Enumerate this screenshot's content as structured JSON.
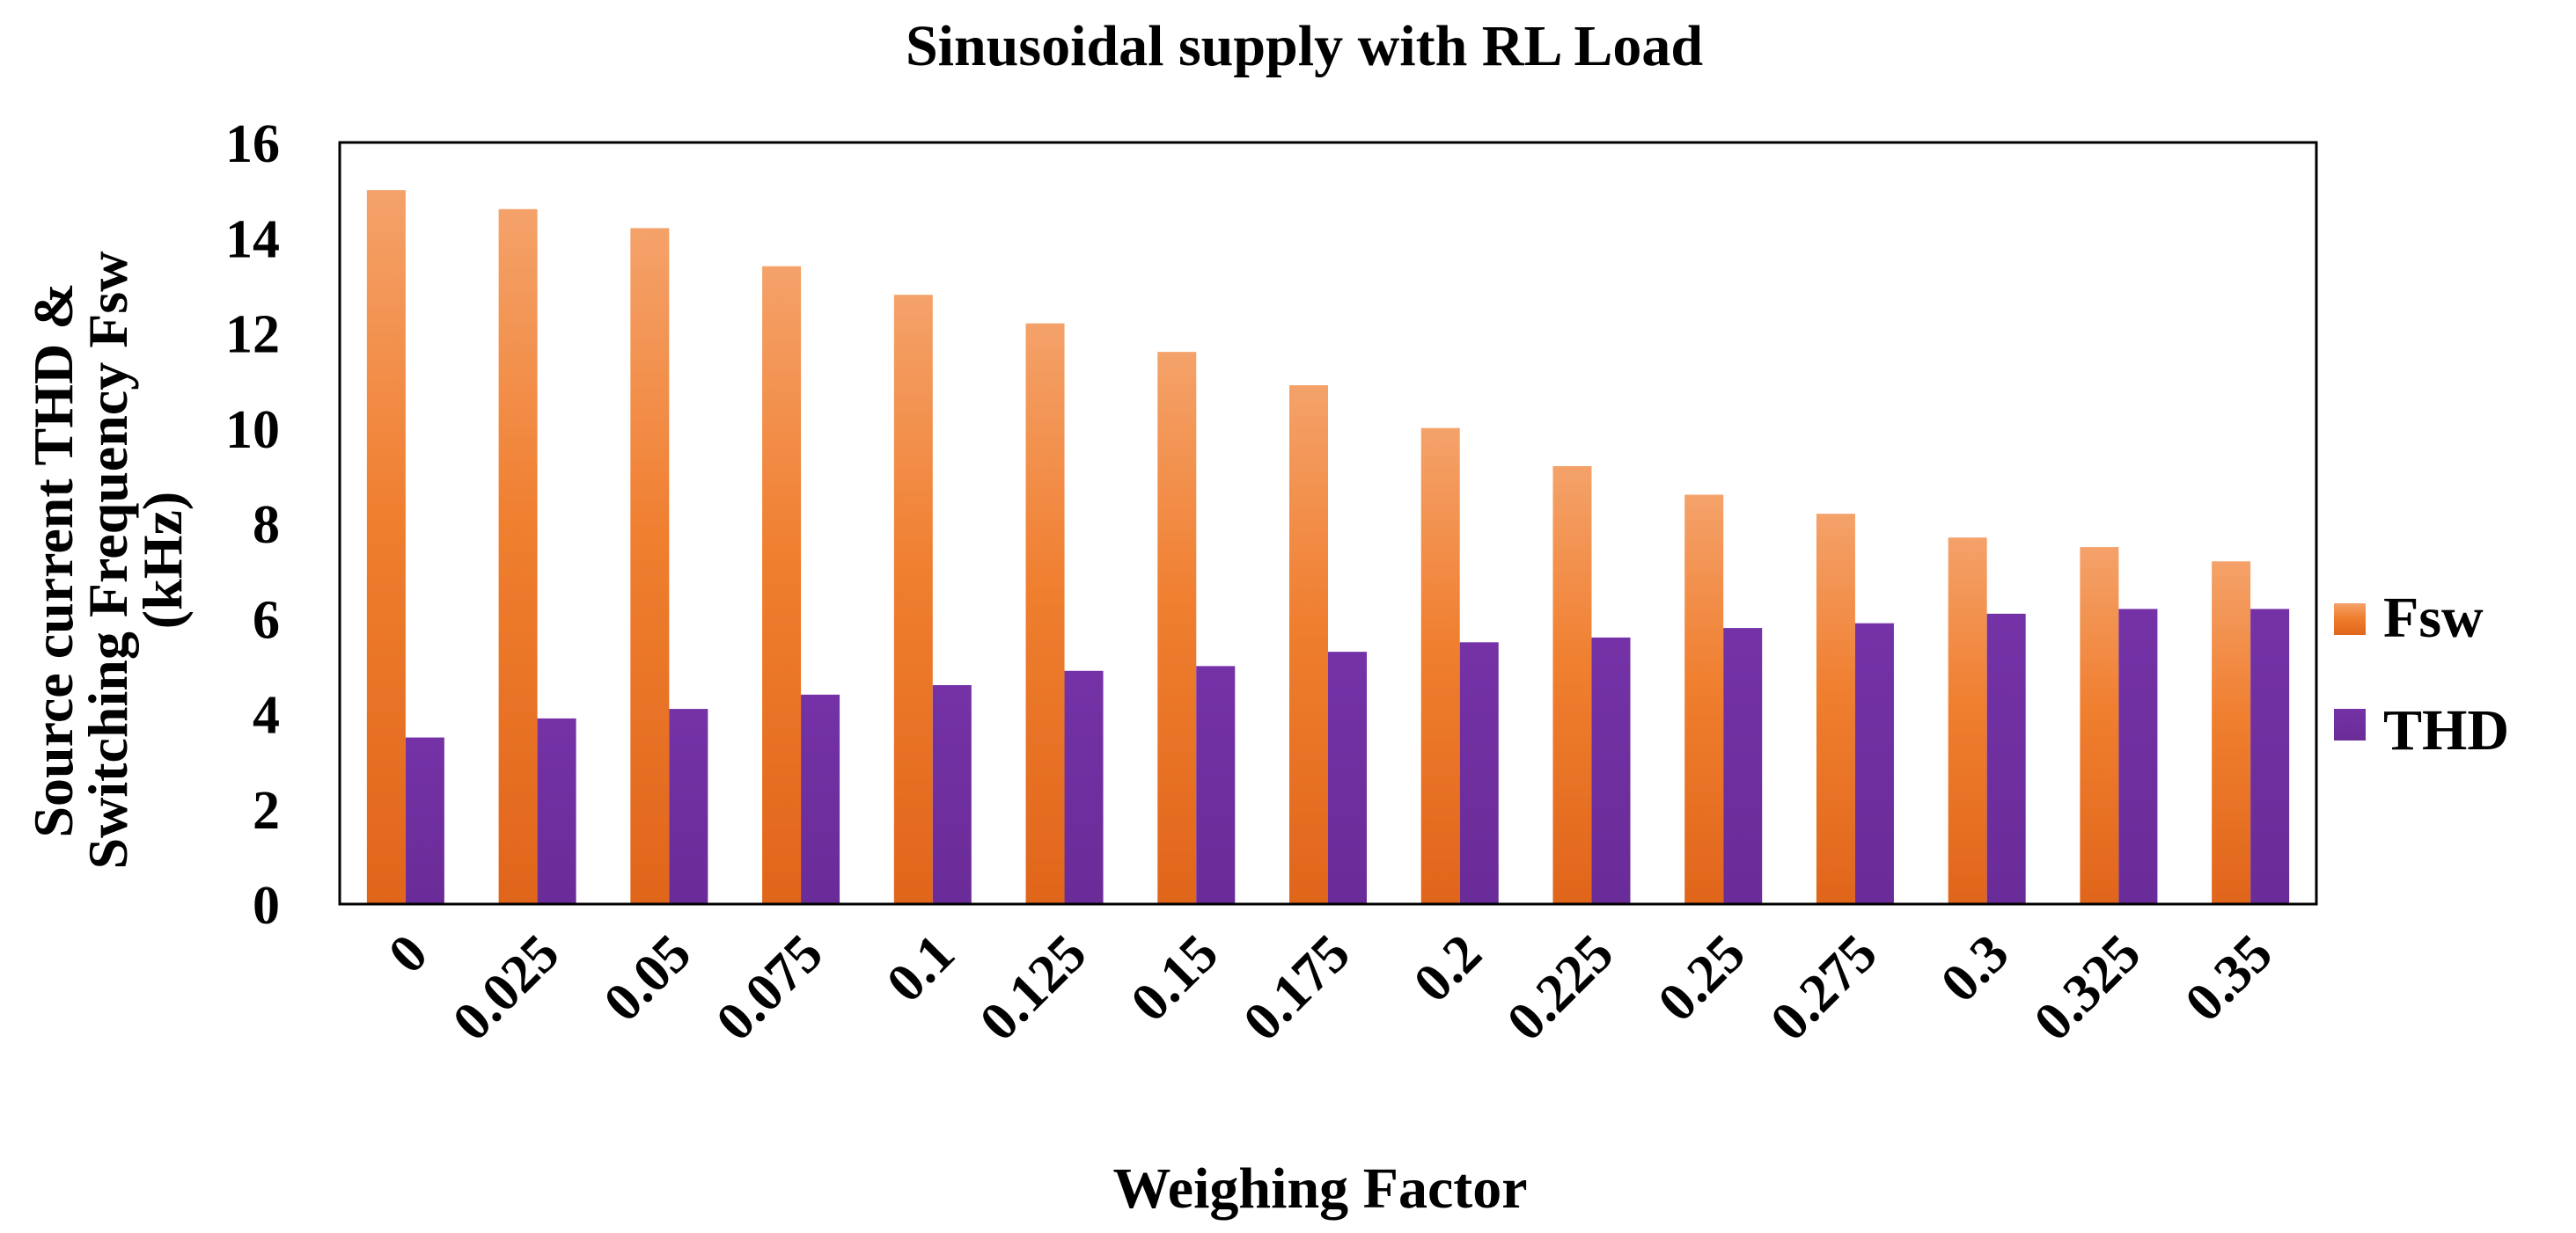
{
  "chart_data": {
    "type": "bar",
    "title": "Sinusoidal supply with RL Load",
    "xlabel": "Weighing Factor",
    "ylabel_lines": [
      "Source current THD &",
      "Switching Frequency Fsw",
      "(kHz)"
    ],
    "ylim": [
      0,
      16
    ],
    "yticks": [
      "0",
      "2",
      "4",
      "6",
      "8",
      "10",
      "12",
      "14",
      "16"
    ],
    "grid": false,
    "legend_position": "right",
    "categories": [
      "0",
      "0.025",
      "0.05",
      "0.075",
      "0.1",
      "0.125",
      "0.15",
      "0.175",
      "0.2",
      "0.225",
      "0.25",
      "0.275",
      "0.3",
      "0.325",
      "0.35"
    ],
    "series": [
      {
        "name": "Fsw",
        "color": "#ef7f2e",
        "values": [
          15.0,
          14.6,
          14.2,
          13.4,
          12.8,
          12.2,
          11.6,
          10.9,
          10.0,
          9.2,
          8.6,
          8.2,
          7.7,
          7.5,
          7.2
        ]
      },
      {
        "name": "THD",
        "color": "#7030a0",
        "values": [
          3.5,
          3.9,
          4.1,
          4.4,
          4.6,
          4.9,
          5.0,
          5.3,
          5.5,
          5.6,
          5.8,
          5.9,
          6.1,
          6.2,
          6.2
        ]
      }
    ]
  }
}
